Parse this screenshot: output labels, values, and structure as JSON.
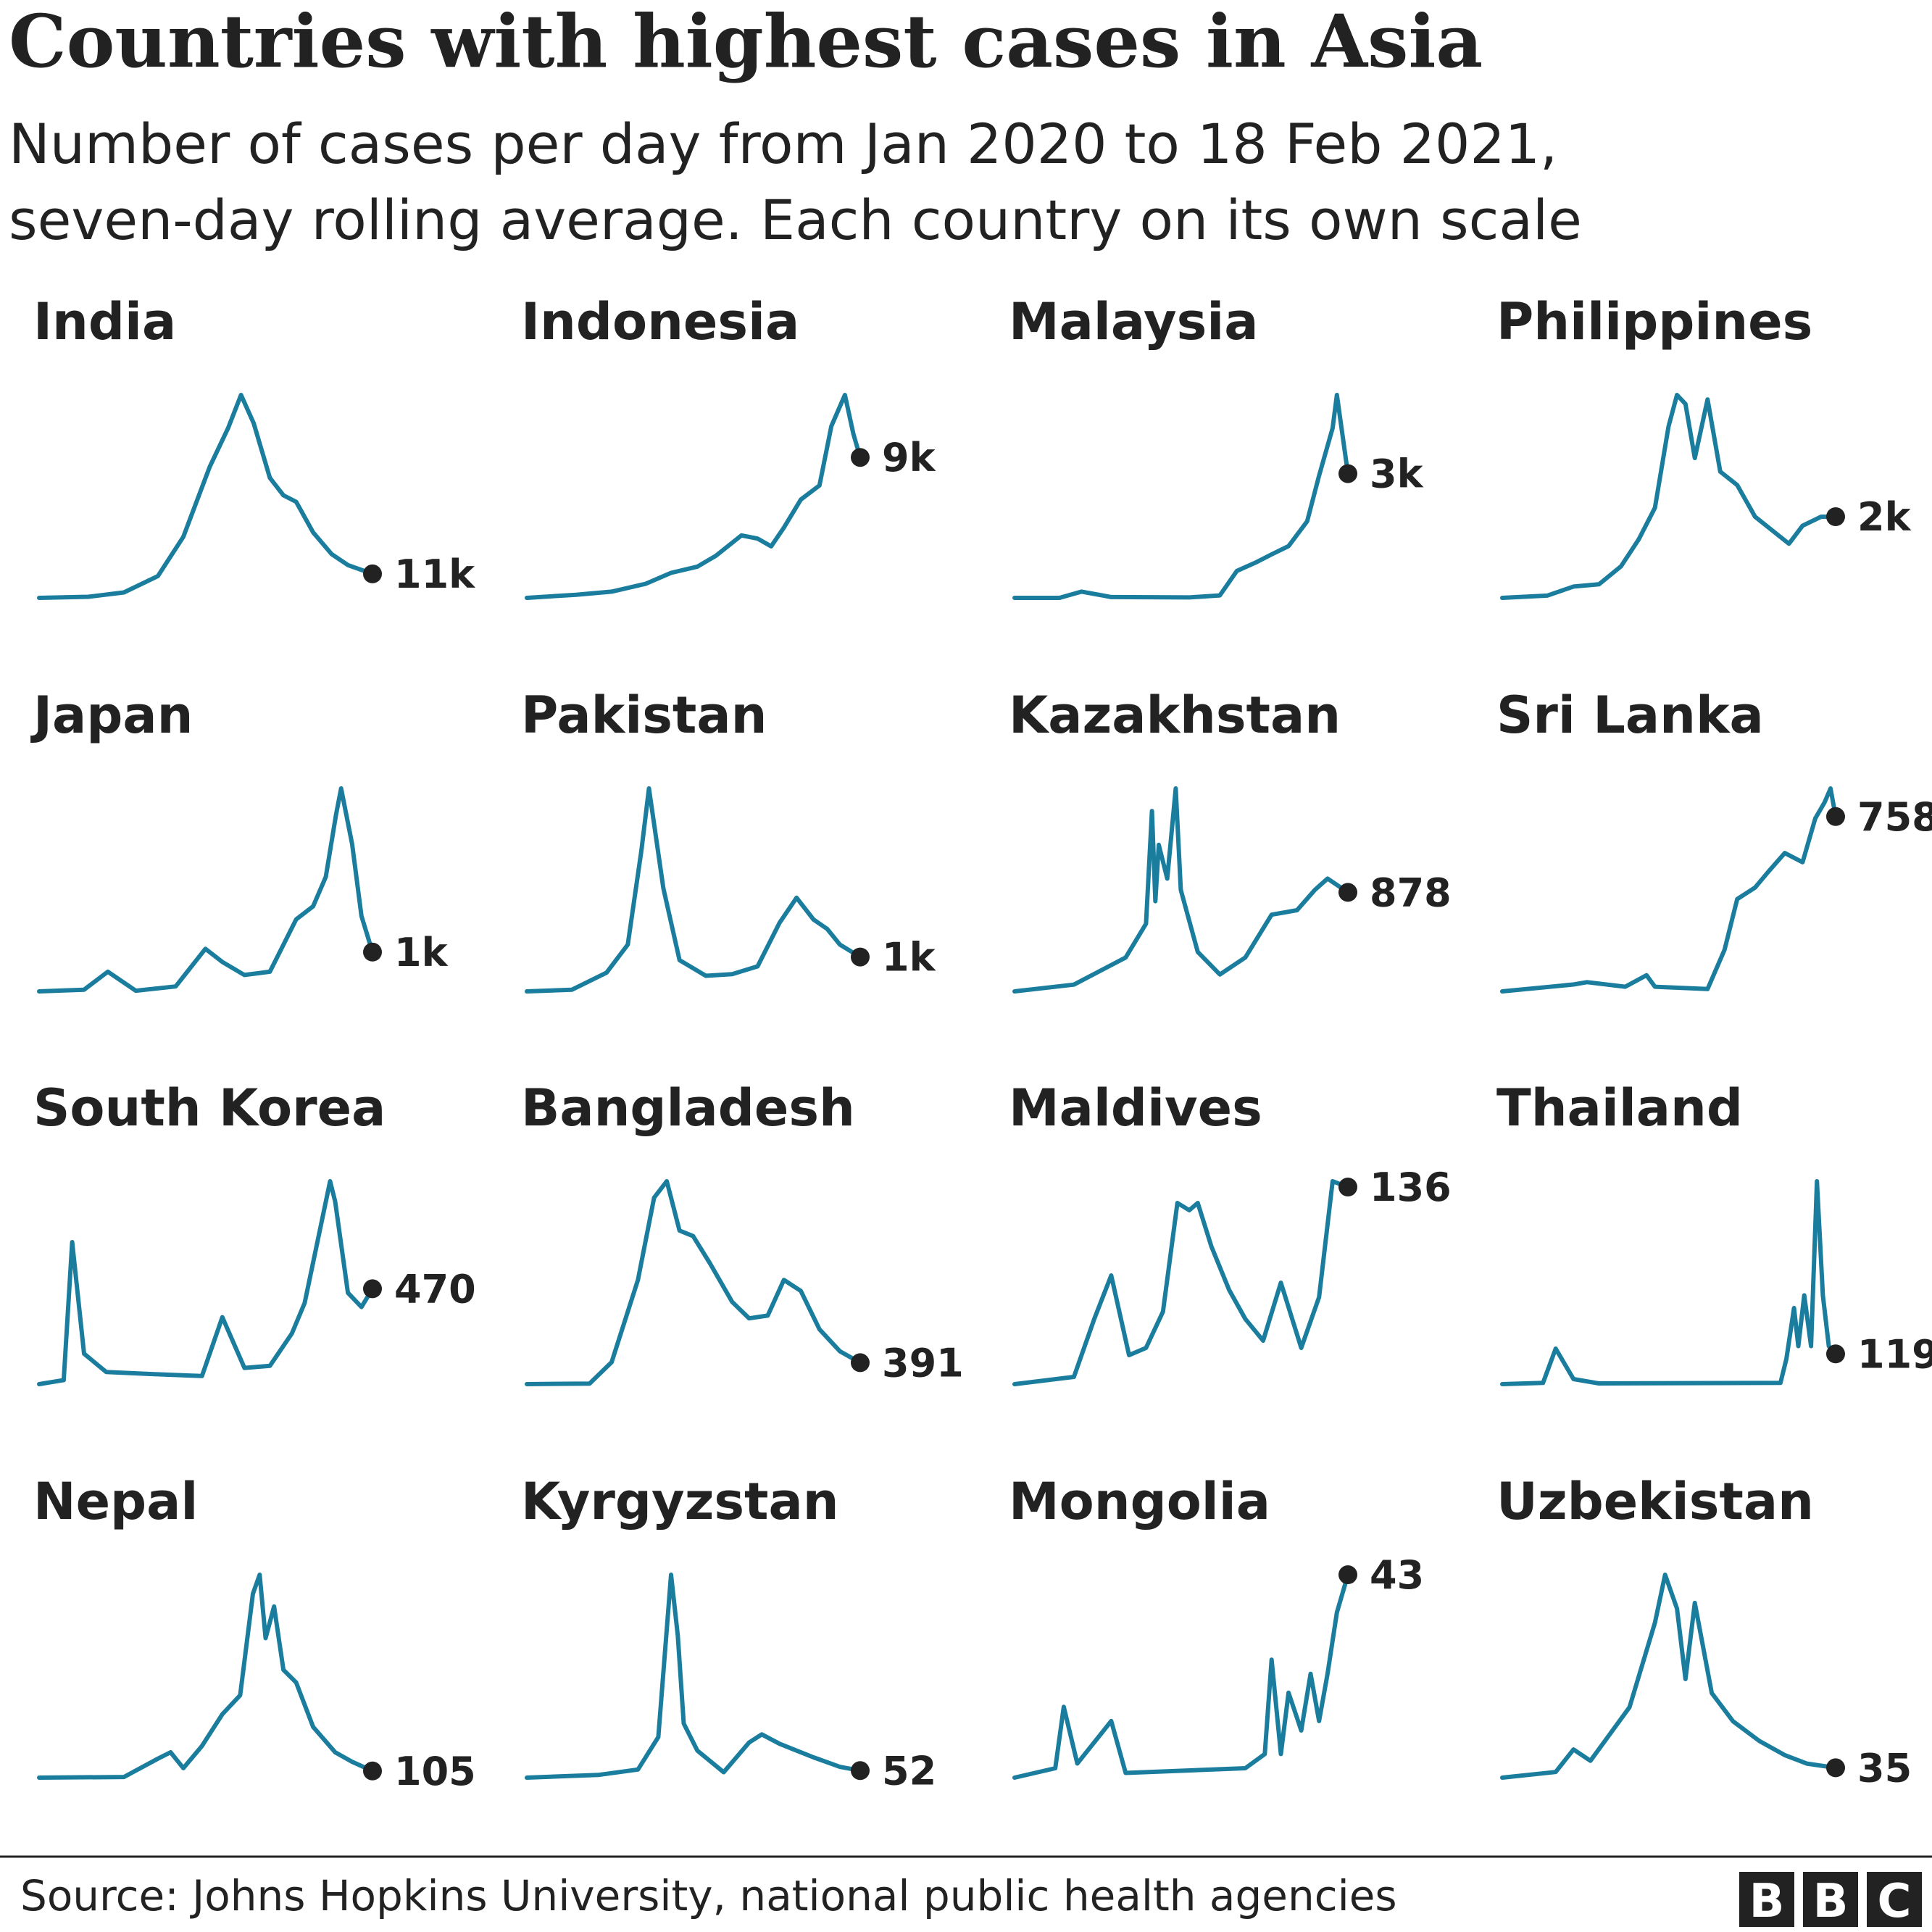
{
  "header": {
    "title": "Countries with highest cases in Asia",
    "subtitle_line1": "Number of cases per day from Jan 2020 to 18 Feb 2021,",
    "subtitle_line2": "seven-day rolling average. Each country on its own scale"
  },
  "footer": {
    "source": "Source: Johns Hopkins University, national public health agencies",
    "logo": [
      "B",
      "B",
      "C"
    ]
  },
  "colors": {
    "line": "#1a7d9e",
    "text": "#222222",
    "dot": "#222222",
    "logo_box": "#222222"
  },
  "chart_data": {
    "type": "line",
    "x_range": [
      "2020-01-22",
      "2021-02-18"
    ],
    "panels": [
      {
        "name": "India",
        "end_label": "11k",
        "x": [
          "2020-01-22",
          "2020-03-20",
          "2020-05-01",
          "2020-06-10",
          "2020-07-10",
          "2020-08-10",
          "2020-09-01",
          "2020-09-16",
          "2020-10-01",
          "2020-10-20",
          "2020-11-05",
          "2020-11-20",
          "2020-12-10",
          "2021-01-01",
          "2021-01-20",
          "2021-02-18"
        ],
        "y": [
          0,
          500,
          2500,
          10000,
          28000,
          60000,
          78000,
          93000,
          80000,
          55000,
          47000,
          44000,
          30000,
          20000,
          15000,
          11000
        ]
      },
      {
        "name": "Indonesia",
        "end_label": "9k",
        "x": [
          "2020-01-22",
          "2020-03-20",
          "2020-05-01",
          "2020-06-10",
          "2020-07-10",
          "2020-08-10",
          "2020-09-01",
          "2020-10-01",
          "2020-10-20",
          "2020-11-05",
          "2020-11-20",
          "2020-12-10",
          "2021-01-01",
          "2021-01-15",
          "2021-01-31",
          "2021-02-10",
          "2021-02-18"
        ],
        "y": [
          0,
          200,
          400,
          900,
          1600,
          2000,
          2700,
          4000,
          3800,
          3300,
          4500,
          6300,
          7200,
          11000,
          13000,
          10500,
          9000
        ]
      },
      {
        "name": "Malaysia",
        "end_label": "3k",
        "x": [
          "2020-01-22",
          "2020-03-15",
          "2020-04-10",
          "2020-05-15",
          "2020-08-15",
          "2020-09-20",
          "2020-10-10",
          "2020-11-01",
          "2020-11-20",
          "2020-12-10",
          "2021-01-01",
          "2021-01-15",
          "2021-01-31",
          "2021-02-05",
          "2021-02-18"
        ],
        "y": [
          0,
          0,
          150,
          20,
          10,
          60,
          650,
          850,
          1050,
          1250,
          1850,
          2950,
          4100,
          4900,
          3000
        ]
      },
      {
        "name": "Philippines",
        "end_label": "2k",
        "x": [
          "2020-01-22",
          "2020-03-15",
          "2020-04-15",
          "2020-05-15",
          "2020-06-10",
          "2020-07-01",
          "2020-07-20",
          "2020-08-05",
          "2020-08-15",
          "2020-08-25",
          "2020-09-05",
          "2020-09-20",
          "2020-10-05",
          "2020-10-25",
          "2020-11-15",
          "2020-12-05",
          "2020-12-25",
          "2021-01-10",
          "2021-02-01",
          "2021-02-18"
        ],
        "y": [
          0,
          50,
          250,
          300,
          700,
          1300,
          2000,
          3800,
          4500,
          4300,
          3100,
          4400,
          2800,
          2500,
          1800,
          1500,
          1200,
          1600,
          1800,
          1800
        ]
      },
      {
        "name": "Japan",
        "end_label": "1k",
        "x": [
          "2020-01-22",
          "2020-03-15",
          "2020-04-12",
          "2020-05-15",
          "2020-07-01",
          "2020-08-05",
          "2020-08-25",
          "2020-09-20",
          "2020-10-20",
          "2020-11-20",
          "2020-12-10",
          "2020-12-25",
          "2021-01-06",
          "2021-01-12",
          "2021-01-25",
          "2021-02-05",
          "2021-02-18"
        ],
        "y": [
          0,
          50,
          600,
          20,
          150,
          1300,
          900,
          500,
          600,
          2200,
          2600,
          3500,
          5400,
          6200,
          4500,
          2300,
          1200
        ]
      },
      {
        "name": "Pakistan",
        "end_label": "1k",
        "x": [
          "2020-01-22",
          "2020-03-15",
          "2020-04-25",
          "2020-05-20",
          "2020-06-05",
          "2020-06-14",
          "2020-07-01",
          "2020-07-20",
          "2020-08-20",
          "2020-09-20",
          "2020-10-20",
          "2020-11-15",
          "2020-12-05",
          "2020-12-25",
          "2021-01-10",
          "2021-01-25",
          "2021-02-18"
        ],
        "y": [
          0,
          50,
          600,
          1500,
          4500,
          6500,
          3300,
          1000,
          500,
          550,
          800,
          2200,
          3000,
          2300,
          2000,
          1500,
          1100
        ]
      },
      {
        "name": "Kazakhstan",
        "end_label": "878",
        "x": [
          "2020-01-22",
          "2020-04-01",
          "2020-06-01",
          "2020-06-25",
          "2020-07-02",
          "2020-07-06",
          "2020-07-10",
          "2020-07-20",
          "2020-07-30",
          "2020-08-05",
          "2020-08-25",
          "2020-09-20",
          "2020-10-20",
          "2020-11-20",
          "2020-12-20",
          "2021-01-10",
          "2021-01-25",
          "2021-02-18"
        ],
        "y": [
          0,
          60,
          300,
          600,
          1600,
          800,
          1300,
          1000,
          1800,
          900,
          350,
          150,
          300,
          680,
          720,
          900,
          1000,
          878
        ]
      },
      {
        "name": "Sri Lanka",
        "end_label": "758",
        "x": [
          "2020-01-22",
          "2020-04-15",
          "2020-05-01",
          "2020-06-15",
          "2020-07-10",
          "2020-07-20",
          "2020-09-20",
          "2020-10-10",
          "2020-10-25",
          "2020-11-15",
          "2020-12-01",
          "2020-12-20",
          "2021-01-10",
          "2021-01-25",
          "2021-02-05",
          "2021-02-12",
          "2021-02-18"
        ],
        "y": [
          0,
          30,
          40,
          20,
          70,
          20,
          10,
          180,
          400,
          450,
          520,
          600,
          560,
          750,
          820,
          880,
          758
        ]
      },
      {
        "name": "South Korea",
        "end_label": "470",
        "x": [
          "2020-01-22",
          "2020-02-20",
          "2020-03-01",
          "2020-03-15",
          "2020-04-10",
          "2020-06-01",
          "2020-08-01",
          "2020-08-25",
          "2020-09-20",
          "2020-10-20",
          "2020-11-15",
          "2020-11-30",
          "2020-12-20",
          "2020-12-30",
          "2021-01-05",
          "2021-01-20",
          "2021-02-05",
          "2021-02-18"
        ],
        "y": [
          0,
          20,
          700,
          150,
          60,
          50,
          40,
          330,
          80,
          90,
          250,
          400,
          800,
          1000,
          900,
          450,
          380,
          470
        ]
      },
      {
        "name": "Bangladesh",
        "end_label": "391",
        "x": [
          "2020-01-22",
          "2020-04-05",
          "2020-05-01",
          "2020-06-01",
          "2020-06-20",
          "2020-07-05",
          "2020-07-20",
          "2020-08-05",
          "2020-08-25",
          "2020-09-20",
          "2020-10-10",
          "2020-11-01",
          "2020-11-20",
          "2020-12-10",
          "2021-01-01",
          "2021-01-25",
          "2021-02-18"
        ],
        "y": [
          0,
          10,
          400,
          1900,
          3400,
          3700,
          2800,
          2700,
          2200,
          1500,
          1200,
          1250,
          1900,
          1700,
          1000,
          600,
          391
        ]
      },
      {
        "name": "Maldives",
        "end_label": "136",
        "x": [
          "2020-01-22",
          "2020-04-01",
          "2020-04-25",
          "2020-05-15",
          "2020-06-05",
          "2020-06-25",
          "2020-07-15",
          "2020-08-01",
          "2020-08-15",
          "2020-08-25",
          "2020-09-10",
          "2020-10-01",
          "2020-10-20",
          "2020-11-10",
          "2020-12-01",
          "2020-12-25",
          "2021-01-15",
          "2021-01-31",
          "2021-02-18"
        ],
        "y": [
          0,
          5,
          45,
          75,
          20,
          25,
          50,
          125,
          120,
          125,
          95,
          65,
          45,
          30,
          70,
          25,
          60,
          140,
          136
        ]
      },
      {
        "name": "Thailand",
        "end_label": "119",
        "x": [
          "2020-01-22",
          "2020-03-10",
          "2020-03-25",
          "2020-04-15",
          "2020-05-15",
          "2020-12-15",
          "2020-12-22",
          "2020-12-31",
          "2021-01-05",
          "2021-01-12",
          "2021-01-20",
          "2021-01-27",
          "2021-02-03",
          "2021-02-10",
          "2021-02-18"
        ],
        "y": [
          0,
          5,
          140,
          20,
          3,
          5,
          100,
          300,
          150,
          350,
          150,
          800,
          350,
          150,
          119
        ]
      },
      {
        "name": "Nepal",
        "end_label": "105",
        "x": [
          "2020-01-22",
          "2020-05-01",
          "2020-06-10",
          "2020-06-25",
          "2020-07-10",
          "2020-08-01",
          "2020-08-25",
          "2020-09-15",
          "2020-09-30",
          "2020-10-08",
          "2020-10-15",
          "2020-10-25",
          "2020-11-05",
          "2020-11-20",
          "2020-12-10",
          "2021-01-05",
          "2021-01-25",
          "2021-02-18"
        ],
        "y": [
          0,
          10,
          300,
          400,
          150,
          500,
          1000,
          1300,
          2900,
          3200,
          2200,
          2700,
          1700,
          1500,
          800,
          400,
          250,
          105
        ]
      },
      {
        "name": "Kyrgyzstan",
        "end_label": "52",
        "x": [
          "2020-01-22",
          "2020-04-15",
          "2020-06-01",
          "2020-06-25",
          "2020-07-10",
          "2020-07-18",
          "2020-07-25",
          "2020-08-10",
          "2020-09-10",
          "2020-10-10",
          "2020-10-25",
          "2020-11-15",
          "2020-12-01",
          "2020-12-25",
          "2021-01-25",
          "2021-02-18"
        ],
        "y": [
          0,
          20,
          60,
          300,
          1500,
          1050,
          400,
          200,
          40,
          260,
          320,
          250,
          210,
          150,
          80,
          52
        ]
      },
      {
        "name": "Mongolia",
        "end_label": "43",
        "x": [
          "2020-01-22",
          "2020-03-10",
          "2020-03-20",
          "2020-04-05",
          "2020-05-15",
          "2020-06-01",
          "2020-10-20",
          "2020-11-12",
          "2020-11-20",
          "2020-12-01",
          "2020-12-10",
          "2020-12-25",
          "2021-01-05",
          "2021-01-15",
          "2021-01-25",
          "2021-02-05",
          "2021-02-18"
        ],
        "y": [
          0,
          2,
          15,
          3,
          12,
          1,
          2,
          5,
          25,
          5,
          18,
          10,
          22,
          12,
          22,
          35,
          43
        ]
      },
      {
        "name": "Uzbekistan",
        "end_label": "35",
        "x": [
          "2020-01-22",
          "2020-03-25",
          "2020-04-15",
          "2020-05-05",
          "2020-06-20",
          "2020-07-20",
          "2020-08-01",
          "2020-08-15",
          "2020-08-25",
          "2020-09-05",
          "2020-09-25",
          "2020-10-20",
          "2020-11-20",
          "2020-12-20",
          "2021-01-15",
          "2021-02-18"
        ],
        "y": [
          0,
          20,
          100,
          60,
          250,
          550,
          720,
          600,
          350,
          620,
          300,
          200,
          130,
          80,
          50,
          35
        ]
      }
    ]
  }
}
